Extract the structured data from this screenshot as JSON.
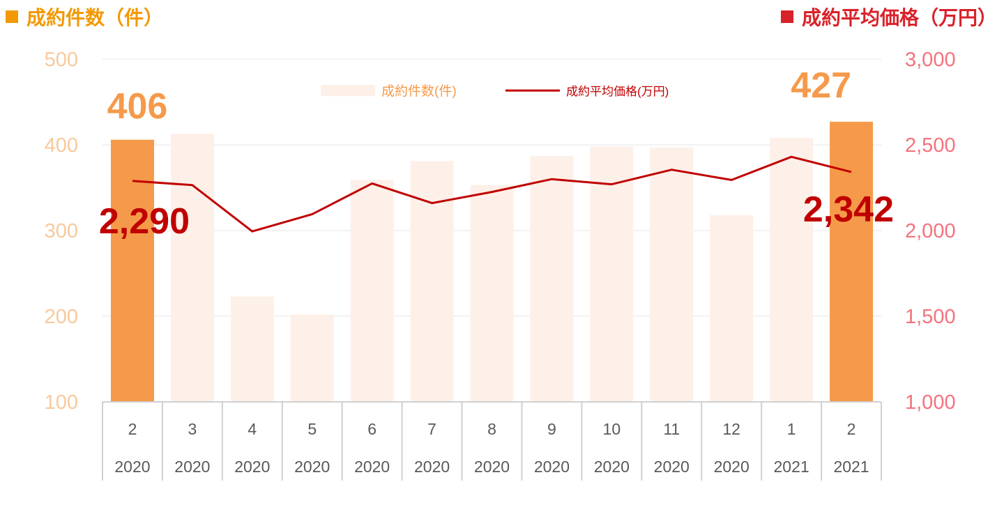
{
  "header_left": {
    "label": "成約件数（件）",
    "color": "#F39800"
  },
  "header_right": {
    "label": "成約平均価格（万円）",
    "color": "#D9222A"
  },
  "colors": {
    "bar_light": "#FDF0E8",
    "bar_highlight": "#F59A4A",
    "line": "#C00000",
    "left_axis_text": "#F8C99C",
    "right_axis_text": "#F4727C",
    "grid": "#E6E6E6",
    "category_text": "#595959",
    "callout_bar": "#F59A4A",
    "callout_line": "#C00000"
  },
  "chart_data": {
    "type": "bar",
    "categories": [
      {
        "month": "2",
        "year": "2020"
      },
      {
        "month": "3",
        "year": "2020"
      },
      {
        "month": "4",
        "year": "2020"
      },
      {
        "month": "5",
        "year": "2020"
      },
      {
        "month": "6",
        "year": "2020"
      },
      {
        "month": "7",
        "year": "2020"
      },
      {
        "month": "8",
        "year": "2020"
      },
      {
        "month": "9",
        "year": "2020"
      },
      {
        "month": "10",
        "year": "2020"
      },
      {
        "month": "11",
        "year": "2020"
      },
      {
        "month": "12",
        "year": "2020"
      },
      {
        "month": "1",
        "year": "2021"
      },
      {
        "month": "2",
        "year": "2021"
      }
    ],
    "series": [
      {
        "name": "成約件数(件)",
        "type": "bar",
        "axis": "left",
        "values": [
          406,
          413,
          223,
          202,
          359,
          381,
          353,
          387,
          398,
          397,
          318,
          408,
          427
        ],
        "highlight": [
          0,
          12
        ]
      },
      {
        "name": "成約平均価格(万円)",
        "type": "line",
        "axis": "right",
        "values": [
          2290,
          2265,
          1995,
          2095,
          2275,
          2160,
          2225,
          2300,
          2270,
          2355,
          2295,
          2430,
          2342
        ]
      }
    ],
    "left_axis": {
      "min": 100,
      "max": 500,
      "ticks": [
        "100",
        "200",
        "300",
        "400",
        "500"
      ]
    },
    "right_axis": {
      "min": 1000,
      "max": 3000,
      "ticks": [
        "1,000",
        "1,500",
        "2,000",
        "2,500",
        "3,000"
      ]
    },
    "legend": {
      "position": "top-center",
      "entries": [
        "成約件数(件)",
        "成約平均価格(万円)"
      ]
    },
    "callouts": {
      "first_bar": "406",
      "last_bar": "427",
      "first_line": "2,290",
      "last_line": "2,342"
    },
    "grid": true
  }
}
